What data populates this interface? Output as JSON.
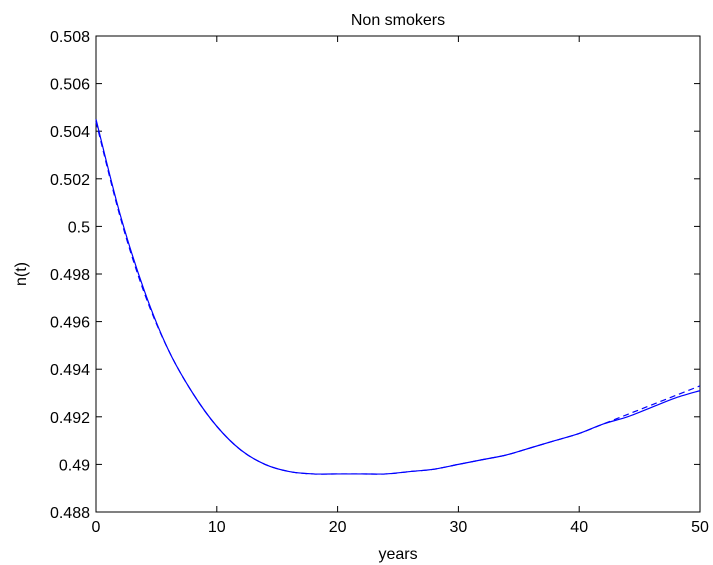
{
  "chart_data": {
    "type": "line",
    "title": "Non smokers",
    "xlabel": "years",
    "ylabel": "n(t)",
    "xlim": [
      0,
      50
    ],
    "ylim": [
      0.488,
      0.508
    ],
    "xticks": [
      0,
      10,
      20,
      30,
      40,
      50
    ],
    "yticks": [
      0.488,
      0.49,
      0.492,
      0.494,
      0.496,
      0.498,
      0.5,
      0.502,
      0.504,
      0.506,
      0.508
    ],
    "xtick_labels": [
      "0",
      "10",
      "20",
      "30",
      "40",
      "50"
    ],
    "ytick_labels": [
      "0.488",
      "0.49",
      "0.492",
      "0.494",
      "0.496",
      "0.498",
      "0.5",
      "0.502",
      "0.504",
      "0.506",
      "0.508"
    ],
    "grid": false,
    "legend": "none",
    "series": [
      {
        "style": "solid",
        "color": "#0000ff",
        "x": [
          0,
          2,
          4,
          6,
          8,
          10,
          12,
          14,
          16,
          18,
          20,
          22,
          24,
          26,
          28,
          30,
          32,
          34,
          36,
          38,
          40,
          42,
          44,
          46,
          48,
          50
        ],
        "y": [
          0.5045,
          0.5005,
          0.4973,
          0.4948,
          0.493,
          0.4916,
          0.4906,
          0.49,
          0.4897,
          0.4896,
          0.4896,
          0.4896,
          0.4896,
          0.4897,
          0.4898,
          0.49,
          0.4902,
          0.4904,
          0.4907,
          0.491,
          0.4913,
          0.4917,
          0.492,
          0.4924,
          0.4928,
          0.4931
        ]
      },
      {
        "style": "dashed",
        "color": "#0000ff",
        "x": [
          0,
          2,
          4,
          6,
          8,
          10,
          12,
          14,
          16,
          18,
          20,
          22,
          24,
          26,
          28,
          30,
          32,
          34,
          36,
          38,
          40,
          42,
          44,
          46,
          48,
          50
        ],
        "y": [
          0.5044,
          0.5004,
          0.4972,
          0.4948,
          0.493,
          0.4916,
          0.4906,
          0.49,
          0.4897,
          0.4896,
          0.4896,
          0.4896,
          0.4896,
          0.4897,
          0.4898,
          0.49,
          0.4902,
          0.4904,
          0.4907,
          0.491,
          0.4913,
          0.4917,
          0.4921,
          0.4925,
          0.4929,
          0.4933
        ]
      }
    ]
  }
}
